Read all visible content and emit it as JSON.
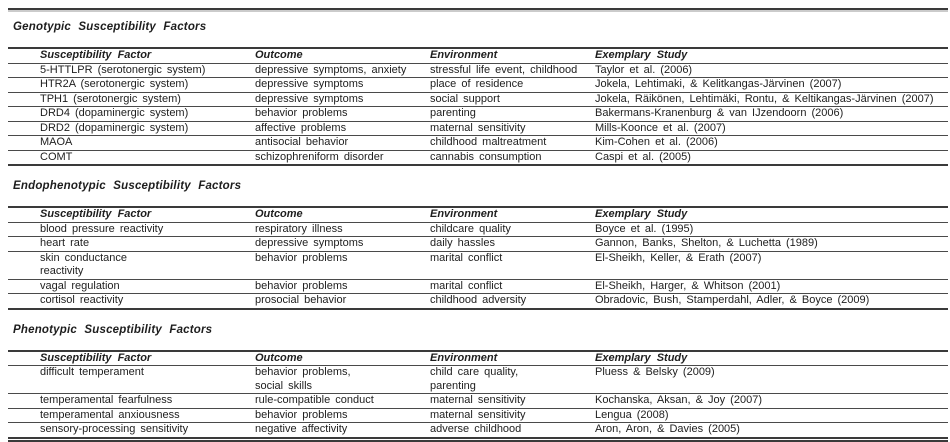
{
  "document": {
    "colors": {
      "text": "#1e1e1e",
      "rule": "#3a3a3a",
      "background": "#ffffff"
    },
    "sections": [
      {
        "heading": "Genotypic Susceptibility Factors",
        "columns": [
          "Susceptibility Factor",
          "Outcome",
          "Environment",
          "Exemplary Study"
        ],
        "rows": [
          [
            "5-HTTLPR (serotonergic system)",
            "depressive symptoms, anxiety",
            "stressful life event, childhood",
            "Taylor et al. (2006)"
          ],
          [
            "HTR2A (serotonergic system)",
            "depressive symptoms",
            "place of residence",
            "Jokela, Lehtimaki, & Kelitkangas-Järvinen (2007)"
          ],
          [
            "TPH1 (serotonergic system)",
            "depressive symptoms",
            "social support",
            "Jokela, Räikönen, Lehtimäki, Rontu, & Keltikangas-Järvinen (2007)"
          ],
          [
            "DRD4 (dopaminergic system)",
            "behavior problems",
            "parenting",
            "Bakermans-Kranenburg & van IJzendoorn (2006)"
          ],
          [
            "DRD2 (dopaminergic system)",
            "affective problems",
            "maternal sensitivity",
            "Mills-Koonce et al. (2007)"
          ],
          [
            "MAOA",
            "antisocial behavior",
            "childhood maltreatment",
            "Kim-Cohen et al. (2006)"
          ],
          [
            "COMT",
            "schizophreniform disorder",
            "cannabis consumption",
            "Caspi et al. (2005)"
          ]
        ]
      },
      {
        "heading": "Endophenotypic Susceptibility Factors",
        "columns": [
          "Susceptibility Factor",
          "Outcome",
          "Environment",
          "Exemplary Study"
        ],
        "rows": [
          [
            "blood pressure reactivity",
            "respiratory illness",
            "childcare quality",
            "Boyce et al. (1995)"
          ],
          [
            "heart rate",
            "depressive symptoms",
            "daily hassles",
            "Gannon, Banks, Shelton, & Luchetta (1989)"
          ],
          [
            "skin conductance\nreactivity",
            "behavior problems",
            "marital conflict",
            "El-Sheikh, Keller, & Erath (2007)"
          ],
          [
            "vagal regulation",
            "behavior problems",
            "marital conflict",
            "El-Sheikh, Harger, & Whitson (2001)"
          ],
          [
            "cortisol reactivity",
            "prosocial behavior",
            "childhood adversity",
            "Obradovic, Bush, Stamperdahl, Adler, & Boyce (2009)"
          ]
        ]
      },
      {
        "heading": "Phenotypic Susceptibility Factors",
        "columns": [
          "Susceptibility Factor",
          "Outcome",
          "Environment",
          "Exemplary Study"
        ],
        "rows": [
          [
            "difficult temperament",
            "behavior problems,\nsocial skills",
            "child care quality,\nparenting",
            "Pluess & Belsky (2009)"
          ],
          [
            "temperamental fearfulness",
            "rule-compatible conduct",
            "maternal sensitivity",
            "Kochanska, Aksan, & Joy (2007)"
          ],
          [
            "temperamental anxiousness",
            "behavior problems",
            "maternal sensitivity",
            "Lengua (2008)"
          ],
          [
            "sensory-processing sensitivity",
            "negative affectivity",
            "adverse childhood",
            "Aron, Aron, & Davies (2005)"
          ]
        ]
      }
    ]
  }
}
